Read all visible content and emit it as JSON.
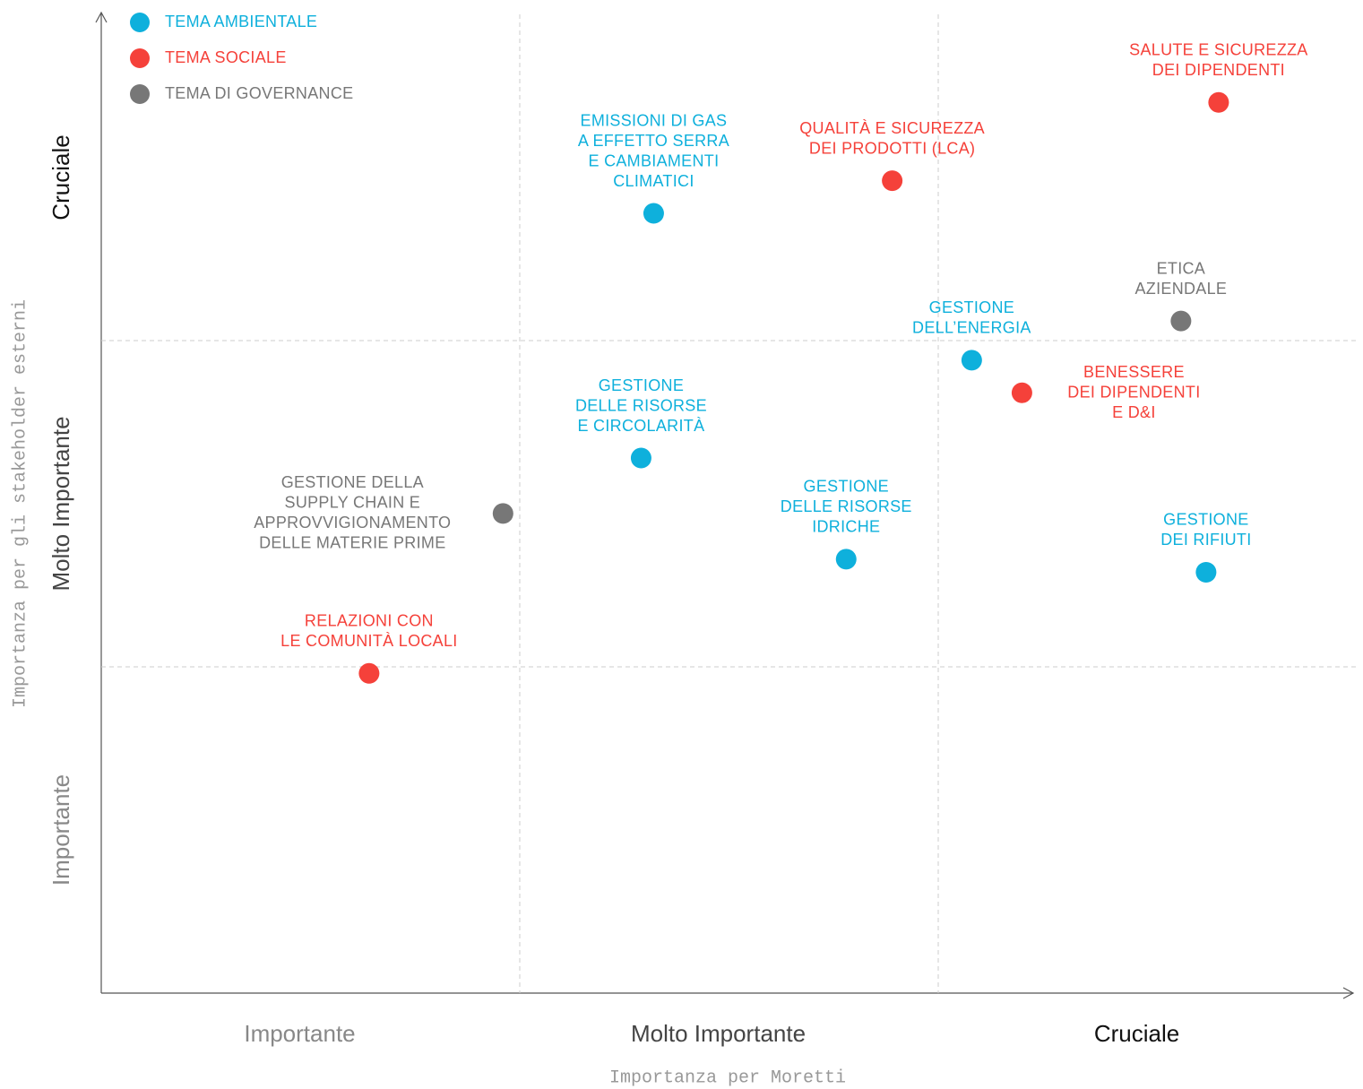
{
  "chart_data": {
    "type": "scatter",
    "x_label": "Importanza per Moretti",
    "y_label": "Importanza per gli stakeholder esterni",
    "x_categories": [
      "Importante",
      "Molto Importante",
      "Cruciale"
    ],
    "y_categories": [
      "Importante",
      "Molto Importante",
      "Cruciale"
    ],
    "xlim": [
      0,
      3
    ],
    "ylim": [
      0,
      3
    ],
    "series": [
      {
        "name": "TEMA AMBIENTALE",
        "color": "#0eb0dc",
        "x": [
          1.32,
          2.08,
          1.29,
          1.78,
          2.64
        ],
        "values": [
          2.39,
          1.94,
          1.64,
          1.33,
          1.29
        ],
        "labels": [
          [
            "EMISSIONI DI GAS",
            "A EFFETTO SERRA",
            "E CAMBIAMENTI",
            "CLIMATICI"
          ],
          [
            "GESTIONE",
            "DELL’ENERGIA"
          ],
          [
            "GESTIONE",
            "DELLE RISORSE",
            "E CIRCOLARITÀ"
          ],
          [
            "GESTIONE",
            "DELLE RISORSE",
            "IDRICHE"
          ],
          [
            "GESTIONE",
            "DEI RIFIUTI"
          ]
        ]
      },
      {
        "name": "TEMA SOCIALE",
        "color": "#f5413a",
        "x": [
          2.67,
          1.89,
          2.2,
          0.64
        ],
        "values": [
          2.73,
          2.49,
          1.84,
          0.98
        ],
        "labels": [
          [
            "SALUTE E SICUREZZA",
            "DEI DIPENDENTI"
          ],
          [
            "QUALITÀ E SICUREZZA",
            "DEI PRODOTTI (LCA)"
          ],
          [
            "BENESSERE",
            "DEI DIPENDENTI",
            "E D&I"
          ],
          [
            "RELAZIONI CON",
            "LE COMUNITÀ LOCALI"
          ]
        ]
      },
      {
        "name": "TEMA DI GOVERNANCE",
        "color": "#777777",
        "x": [
          2.58,
          0.96
        ],
        "values": [
          2.06,
          1.47
        ],
        "labels": [
          [
            "ETICA",
            "AZIENDALE"
          ],
          [
            "GESTIONE DELLA",
            "SUPPLY CHAIN E",
            "APPROVVIGIONAMENTO",
            "DELLE MATERIE PRIME"
          ]
        ]
      }
    ]
  }
}
